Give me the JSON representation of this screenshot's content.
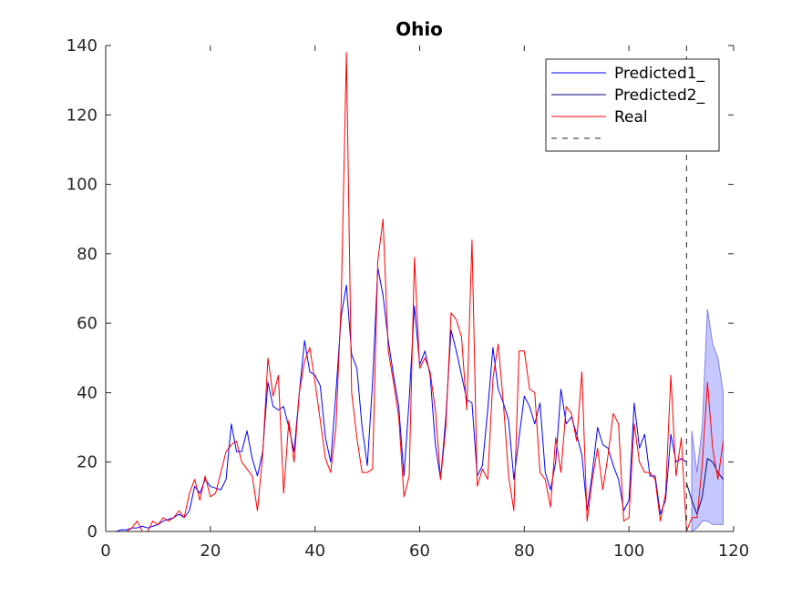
{
  "chart_data": {
    "type": "line",
    "title": "Ohio",
    "xlabel": "",
    "ylabel": "",
    "xlim": [
      0,
      120
    ],
    "ylim": [
      0,
      140
    ],
    "xticks": [
      0,
      20,
      40,
      60,
      80,
      100,
      120
    ],
    "yticks": [
      0,
      20,
      40,
      60,
      80,
      100,
      120,
      140
    ],
    "grid": false,
    "legend_placement": "top-right",
    "vline_x": 111,
    "series": [
      {
        "name": "Predicted1_",
        "color": "#0000ff",
        "x": [
          1,
          2,
          3,
          4,
          5,
          6,
          7,
          8,
          9,
          10,
          11,
          12,
          13,
          14,
          15,
          16,
          17,
          18,
          19,
          20,
          21,
          22,
          23,
          24,
          25,
          26,
          27,
          28,
          29,
          30,
          31,
          32,
          33,
          34,
          35,
          36,
          37,
          38,
          39,
          40,
          41,
          42,
          43,
          44,
          45,
          46,
          47,
          48,
          49,
          50,
          51,
          52,
          53,
          54,
          55,
          56,
          57,
          58,
          59,
          60,
          61,
          62,
          63,
          64,
          65,
          66,
          67,
          68,
          69,
          70,
          71,
          72,
          73,
          74,
          75,
          76,
          77,
          78,
          79,
          80,
          81,
          82,
          83,
          84,
          85,
          86,
          87,
          88,
          89,
          90,
          91,
          92,
          93,
          94,
          95,
          96,
          97,
          98,
          99,
          100,
          101,
          102,
          103,
          104,
          105,
          106,
          107,
          108,
          109,
          110,
          111
        ],
        "values": [
          0,
          0,
          0.5,
          0.5,
          1,
          1,
          1.5,
          1,
          1.5,
          2,
          3,
          3.5,
          4,
          5,
          4,
          6,
          13,
          11,
          15,
          13,
          12.5,
          12,
          15,
          31,
          23,
          23,
          29,
          21,
          16,
          23,
          43,
          36,
          35,
          36,
          30,
          23,
          40,
          55,
          46,
          45,
          42,
          27,
          20,
          40,
          62,
          71,
          51,
          47,
          30,
          19,
          43,
          76,
          68,
          55,
          45,
          36,
          16,
          38,
          65,
          48,
          52,
          45,
          25,
          15,
          33,
          58,
          52,
          45,
          38,
          37,
          16,
          19,
          35,
          53,
          41,
          37,
          32,
          15,
          27,
          39,
          36,
          31,
          37,
          17,
          12,
          20,
          41,
          31,
          33,
          28,
          22,
          6,
          17,
          30,
          25,
          24,
          19,
          15,
          6,
          9,
          37,
          24,
          28,
          16,
          16,
          5,
          9,
          28,
          20,
          21,
          20
        ]
      },
      {
        "name": "Predicted2_",
        "color": "#00007f",
        "x": [
          111,
          112,
          113,
          114,
          115,
          116,
          117,
          118
        ],
        "values": [
          14,
          9,
          5,
          10,
          21,
          20,
          17,
          15
        ]
      },
      {
        "name": "Real",
        "color": "#ff0000",
        "x": [
          1,
          2,
          3,
          4,
          5,
          6,
          7,
          8,
          9,
          10,
          11,
          12,
          13,
          14,
          15,
          16,
          17,
          18,
          19,
          20,
          21,
          22,
          23,
          24,
          25,
          26,
          27,
          28,
          29,
          30,
          31,
          32,
          33,
          34,
          35,
          36,
          37,
          38,
          39,
          40,
          41,
          42,
          43,
          44,
          45,
          46,
          47,
          48,
          49,
          50,
          51,
          52,
          53,
          54,
          55,
          56,
          57,
          58,
          59,
          60,
          61,
          62,
          63,
          64,
          65,
          66,
          67,
          68,
          69,
          70,
          71,
          72,
          73,
          74,
          75,
          76,
          77,
          78,
          79,
          80,
          81,
          82,
          83,
          84,
          85,
          86,
          87,
          88,
          89,
          90,
          91,
          92,
          93,
          94,
          95,
          96,
          97,
          98,
          99,
          100,
          101,
          102,
          103,
          104,
          105,
          106,
          107,
          108,
          109,
          110,
          111,
          112,
          113,
          114,
          115,
          116,
          117,
          118
        ],
        "values": [
          0,
          0,
          0,
          0,
          1,
          3,
          0,
          0,
          3,
          2,
          4,
          3,
          4,
          6,
          4,
          11,
          15,
          9,
          16,
          10,
          11,
          17,
          23,
          25,
          26,
          20,
          18,
          16,
          6,
          22,
          50,
          39,
          45,
          11,
          32,
          20,
          40,
          49,
          53,
          43,
          32,
          21,
          17,
          30,
          66,
          138,
          40,
          27,
          17,
          17,
          18,
          78,
          90,
          52,
          43,
          33,
          10,
          16,
          79,
          47,
          50,
          46,
          35,
          15,
          30,
          63,
          61,
          56,
          35,
          84,
          13,
          18,
          15,
          44,
          54,
          37,
          16,
          6,
          52,
          52,
          41,
          40,
          17,
          15,
          7,
          27,
          17,
          36,
          34,
          26,
          46,
          3,
          15,
          24,
          12,
          22,
          34,
          31,
          3,
          4,
          31,
          20,
          17,
          17,
          15,
          3,
          11,
          45,
          16,
          27,
          0,
          4,
          4,
          19,
          43,
          24,
          15,
          26
        ]
      },
      {
        "name": "",
        "color": "#262626",
        "dash": "6,6",
        "legend_only": true
      }
    ],
    "band": {
      "color": "#c7c7ff",
      "edge_color": "#8080e8",
      "x": [
        112,
        113,
        114,
        115,
        116,
        117,
        118
      ],
      "lower": [
        0,
        1,
        3,
        3,
        2,
        2,
        2
      ],
      "upper": [
        29,
        17,
        30,
        64,
        54,
        50,
        40
      ]
    }
  }
}
